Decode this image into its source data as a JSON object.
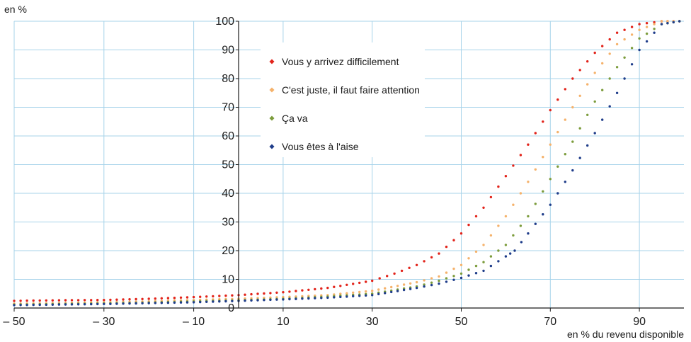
{
  "chart_data": {
    "type": "scatter",
    "title": "",
    "ylabel": "en %",
    "xlabel": "en % du revenu disponible",
    "xlim": [
      -50,
      100
    ],
    "ylim": [
      0,
      100
    ],
    "x_ticks": [
      -50,
      -30,
      -10,
      10,
      30,
      50,
      70,
      90
    ],
    "x_tick_labels": [
      "– 50",
      "– 30",
      "– 10",
      "10",
      "30",
      "50",
      "70",
      "90"
    ],
    "y_ticks": [
      0,
      10,
      20,
      30,
      40,
      50,
      60,
      70,
      80,
      90,
      100
    ],
    "y_tick_labels": [
      "0",
      "10",
      "20",
      "30",
      "40",
      "50",
      "60",
      "70",
      "80",
      "90",
      "100"
    ],
    "grid": true,
    "legend_position": "top-center",
    "series": [
      {
        "name": "Vous y arrivez difficilement",
        "color": "#e2231a",
        "points": [
          [
            -50,
            2.5
          ],
          [
            -40,
            2.7
          ],
          [
            -30,
            2.8
          ],
          [
            -20,
            3.2
          ],
          [
            -10,
            3.8
          ],
          [
            0,
            4.5
          ],
          [
            10,
            5.5
          ],
          [
            20,
            7
          ],
          [
            30,
            9.5
          ],
          [
            35,
            12
          ],
          [
            40,
            15
          ],
          [
            45,
            19
          ],
          [
            50,
            26
          ],
          [
            55,
            35
          ],
          [
            60,
            46
          ],
          [
            65,
            57
          ],
          [
            70,
            69
          ],
          [
            75,
            80
          ],
          [
            80,
            89
          ],
          [
            85,
            96
          ],
          [
            90,
            99
          ],
          [
            95,
            100
          ],
          [
            99,
            100
          ]
        ]
      },
      {
        "name": "C'est juste, il faut faire attention",
        "color": "#f5b26b",
        "points": [
          [
            -50,
            1.5
          ],
          [
            -40,
            1.7
          ],
          [
            -30,
            2
          ],
          [
            -20,
            2.3
          ],
          [
            -10,
            2.8
          ],
          [
            0,
            3.2
          ],
          [
            10,
            3.8
          ],
          [
            20,
            4.5
          ],
          [
            30,
            6
          ],
          [
            40,
            9
          ],
          [
            45,
            11
          ],
          [
            50,
            15
          ],
          [
            55,
            22
          ],
          [
            60,
            32
          ],
          [
            65,
            44
          ],
          [
            70,
            57
          ],
          [
            75,
            70
          ],
          [
            80,
            82
          ],
          [
            85,
            92
          ],
          [
            90,
            97
          ],
          [
            95,
            100
          ],
          [
            99,
            100
          ]
        ]
      },
      {
        "name": "Ça va",
        "color": "#7c9c3c",
        "points": [
          [
            -50,
            1.2
          ],
          [
            -40,
            1.4
          ],
          [
            -30,
            1.6
          ],
          [
            -20,
            1.9
          ],
          [
            -10,
            2.3
          ],
          [
            0,
            2.7
          ],
          [
            10,
            3.2
          ],
          [
            20,
            4
          ],
          [
            30,
            5
          ],
          [
            40,
            7.5
          ],
          [
            45,
            9.5
          ],
          [
            50,
            12
          ],
          [
            55,
            16
          ],
          [
            60,
            22
          ],
          [
            65,
            32
          ],
          [
            70,
            45
          ],
          [
            75,
            58
          ],
          [
            80,
            72
          ],
          [
            85,
            84
          ],
          [
            90,
            94
          ],
          [
            95,
            99
          ],
          [
            99,
            100
          ]
        ]
      },
      {
        "name": "Vous êtes à l'aise",
        "color": "#1f3d8a",
        "points": [
          [
            -50,
            1
          ],
          [
            -40,
            1.2
          ],
          [
            -30,
            1.4
          ],
          [
            -20,
            1.7
          ],
          [
            -10,
            2
          ],
          [
            0,
            2.5
          ],
          [
            10,
            3
          ],
          [
            20,
            3.6
          ],
          [
            30,
            4.5
          ],
          [
            40,
            7
          ],
          [
            45,
            8.5
          ],
          [
            50,
            10.5
          ],
          [
            55,
            13
          ],
          [
            60,
            18
          ],
          [
            62,
            20
          ],
          [
            65,
            26
          ],
          [
            70,
            36
          ],
          [
            75,
            48
          ],
          [
            80,
            61
          ],
          [
            85,
            75
          ],
          [
            90,
            90
          ],
          [
            95,
            99
          ],
          [
            99,
            100
          ]
        ]
      }
    ]
  }
}
